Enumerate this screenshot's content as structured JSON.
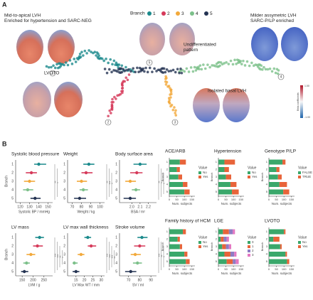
{
  "panel_a": {
    "letter": "A",
    "legend_title": "Branch",
    "branches": [
      1,
      2,
      3,
      4,
      5
    ],
    "branch_colors": [
      "#1b8a8c",
      "#d63a5a",
      "#f2a93b",
      "#7cc08a",
      "#243352"
    ],
    "annotations": {
      "mid_apical": [
        "Mid-to-apical LVH",
        "Enriched for hypertension and SARC-NEG"
      ],
      "undifferentiated": [
        "Undifferentiated",
        "pattern"
      ],
      "milder": [
        "Milder assymetric LVH",
        "SARC-P/LP enriched"
      ],
      "lvoto": [
        "LVOTO"
      ],
      "basal": [
        "Isolated basal LVH"
      ]
    },
    "colorbar": {
      "title": "Beta coefficients",
      "top": "1.00",
      "bottom": "-1.00"
    }
  },
  "panel_b": {
    "letter": "B",
    "axis_branch": "Branch",
    "branches": [
      1,
      2,
      3,
      4,
      5
    ],
    "forest": [
      {
        "title": "Systolic blood pressure",
        "xlabel": "Systolic BP / mmHg",
        "xlim": [
          115,
          155
        ],
        "xticks": [
          120,
          130,
          140,
          150
        ],
        "values": [
          140,
          132,
          130,
          128,
          136
        ],
        "lower": [
          135,
          126,
          124,
          123,
          131
        ],
        "upper": [
          148,
          138,
          136,
          134,
          142
        ],
        "annotations": [
          "**",
          "*"
        ]
      },
      {
        "title": "Weight",
        "xlabel": "Weight / kg",
        "xlim": [
          65,
          105
        ],
        "xticks": [
          70,
          80,
          90,
          100
        ],
        "values": [
          88,
          85,
          80,
          82,
          78
        ],
        "lower": [
          82,
          80,
          75,
          78,
          72
        ],
        "upper": [
          94,
          92,
          86,
          87,
          85
        ],
        "annotations": [
          "**",
          "***",
          "*"
        ]
      },
      {
        "title": "Body surface area",
        "xlabel": "BSA / m²",
        "xlim": [
          1.85,
          2.3
        ],
        "xticks": [
          {
            "value": 2,
            "label": "2.0"
          },
          2.1,
          2.2
        ],
        "values": [
          2.1,
          2.06,
          1.98,
          2.05,
          1.98
        ],
        "lower": [
          2.02,
          1.98,
          1.92,
          2.0,
          1.9
        ],
        "upper": [
          2.18,
          2.13,
          2.05,
          2.1,
          2.05
        ],
        "annotations": [
          "**",
          "*",
          "*"
        ]
      },
      {
        "title": "LV mass",
        "xlabel": "LVM / g",
        "xlim": [
          120,
          290
        ],
        "xticks": [
          150,
          200,
          250
        ],
        "values": [
          230,
          220,
          190,
          170,
          160
        ],
        "lower": [
          210,
          200,
          170,
          155,
          145
        ],
        "upper": [
          250,
          245,
          210,
          185,
          178
        ],
        "annotations": [
          "***",
          "***",
          "**",
          "*"
        ]
      },
      {
        "title": "LV max wall thickness",
        "xlabel": "LV Max WT / mm",
        "xlim": [
          10,
          32
        ],
        "xticks": [
          15,
          20,
          25,
          30
        ],
        "values": [
          22,
          24,
          18,
          14,
          15
        ],
        "lower": [
          20,
          22,
          16,
          13,
          13
        ],
        "upper": [
          24,
          27,
          20,
          16,
          17
        ],
        "annotations": [
          "***",
          "***",
          "***",
          "**"
        ]
      },
      {
        "title": "Stroke volume",
        "xlabel": "SV / ml",
        "xlim": [
          62,
          95
        ],
        "xticks": [
          70,
          80,
          90
        ],
        "values": [
          82,
          80,
          76,
          78,
          72
        ],
        "lower": [
          78,
          75,
          72,
          74,
          67
        ],
        "upper": [
          87,
          85,
          81,
          82,
          77
        ],
        "annotations": [
          "***",
          "**",
          "*"
        ]
      }
    ],
    "bars": [
      {
        "title": "ACE/ARB",
        "xlabel": "Num. subjects",
        "legend_title": "Value",
        "xlim": [
          0,
          170
        ],
        "xticks": [
          0,
          50,
          100,
          150
        ],
        "series": [
          {
            "name": "No",
            "color": "#3aa86b",
            "values": [
              70,
              50,
              60,
              90,
              100
            ]
          },
          {
            "name": "Yes",
            "color": "#e8643a",
            "values": [
              40,
              20,
              25,
              30,
              35
            ]
          }
        ]
      },
      {
        "title": "Hypertension",
        "xlabel": "Num. subjects",
        "legend_title": "Value",
        "xlim": [
          0,
          170
        ],
        "xticks": [
          0,
          50,
          100,
          150
        ],
        "series": [
          {
            "name": "No",
            "color": "#3aa86b",
            "values": [
              40,
              40,
              50,
              80,
              90
            ]
          },
          {
            "name": "Yes",
            "color": "#e8643a",
            "values": [
              70,
              30,
              35,
              40,
              45
            ]
          }
        ]
      },
      {
        "title": "Genotype P/LP",
        "xlabel": "Num. subjects",
        "legend_title": "Value",
        "xlim": [
          0,
          170
        ],
        "xticks": [
          0,
          50,
          100,
          150
        ],
        "series": [
          {
            "name": "FALSE",
            "color": "#3aa86b",
            "values": [
              90,
              50,
              60,
              70,
              95
            ]
          },
          {
            "name": "TRUE",
            "color": "#e8643a",
            "values": [
              20,
              20,
              25,
              50,
              40
            ]
          }
        ]
      },
      {
        "title": "Family history of HCM",
        "xlabel": "Num. subjects",
        "legend_title": "Value",
        "xlim": [
          0,
          170
        ],
        "xticks": [
          0,
          50,
          100,
          150
        ],
        "series": [
          {
            "name": "No",
            "color": "#3aa86b",
            "values": [
              90,
              55,
              70,
              100,
              110
            ]
          },
          {
            "name": "Yes",
            "color": "#e8643a",
            "values": [
              20,
              15,
              15,
              20,
              25
            ]
          }
        ]
      },
      {
        "title": "LGE",
        "xlabel": "Num. subjects",
        "legend_title": "Value",
        "xlim": [
          0,
          170
        ],
        "xticks": [
          0,
          50,
          100,
          150
        ],
        "series": [
          {
            "name": "0",
            "color": "#3aa86b",
            "values": [
              30,
              15,
              25,
              40,
              55
            ]
          },
          {
            "name": "1",
            "color": "#e8643a",
            "values": [
              40,
              20,
              25,
              40,
              40
            ]
          },
          {
            "name": "2",
            "color": "#8e7cc3",
            "values": [
              25,
              20,
              20,
              25,
              20
            ]
          },
          {
            "name": "3",
            "color": "#e377c2",
            "values": [
              15,
              15,
              15,
              15,
              20
            ]
          }
        ]
      },
      {
        "title": "LVOTO",
        "xlabel": "Num. subjects",
        "legend_title": "Value",
        "xlim": [
          0,
          170
        ],
        "xticks": [
          0,
          50,
          100,
          150
        ],
        "series": [
          {
            "name": "No",
            "color": "#3aa86b",
            "values": [
              100,
              30,
              75,
              110,
              120
            ]
          },
          {
            "name": "Yes",
            "color": "#e8643a",
            "values": [
              10,
              40,
              10,
              10,
              15
            ]
          }
        ]
      }
    ]
  }
}
